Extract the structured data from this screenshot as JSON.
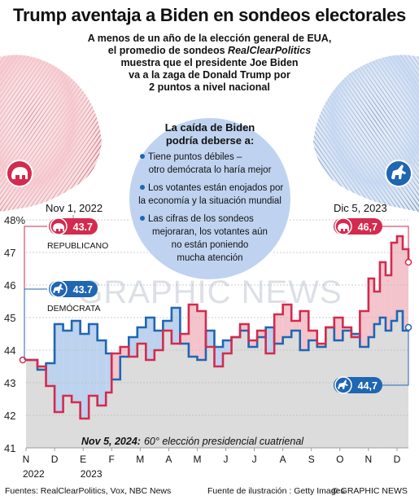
{
  "header": {
    "title": "Trump aventaja a Biden en sondeos electorales",
    "subtitle_line1": "A menos de un año de la elección general de EUA,",
    "subtitle_line2_pre": "el promedio de sondeos ",
    "subtitle_line2_italic": "RealClearPolitics",
    "subtitle_line3": "muestra que el presidente Joe Biden",
    "subtitle_line4": "va a la zaga de Donald Trump por",
    "subtitle_line5": "2 puntos a nivel nacional"
  },
  "callout": {
    "heading_line1": "La caída de Biden",
    "heading_line2": "podría deberse a:",
    "items": [
      [
        "Tiene puntos débiles –",
        "otro demócrata lo haría mejor"
      ],
      [
        "Los votantes están enojados por",
        "la economía y la situación mundial"
      ],
      [
        "Las cifras de los sondeos",
        "mejoraran, los votantes aún",
        "no están poniendo",
        "mucha atención"
      ]
    ]
  },
  "annotations": {
    "start_date": "Nov 1, 2022",
    "end_date": "Dic 5, 2023",
    "rep_start": "43.7",
    "dem_start": "43.7",
    "rep_end": "46,7",
    "dem_end": "44,7",
    "rep_label": "REPUBLICANO",
    "dem_label": "DEMÓCRATA",
    "election_bold": "Nov 5, 2024:",
    "election_italic": "60° elección presidencial cuatrienal",
    "watermark": "GRAPHIC NEWS"
  },
  "colors": {
    "republican": "#d42a4e",
    "democrat": "#1f66b3",
    "rep_fill": "#f3c4cb",
    "dem_fill": "#bcd2ee",
    "base_fill": "#dcdcdc",
    "callout": "#bfd3f0"
  },
  "footer": {
    "sources": "Fuentes: RealClearPolitics, Vox, NBC News",
    "illustration": "Fuente de ilustración : Getty Images",
    "credit": "© GRAPHIC NEWS"
  },
  "chart_data": {
    "type": "line",
    "x_unit": "months since Nov 1, 2022",
    "xlim": [
      0,
      13.4
    ],
    "ylim": [
      41,
      48
    ],
    "yticks": [
      "41",
      "42",
      "43",
      "44",
      "45",
      "46",
      "47",
      "48%"
    ],
    "xtick_labels": [
      {
        "label": "N",
        "x": 0
      },
      {
        "label": "D",
        "x": 1
      },
      {
        "label": "E",
        "x": 2
      },
      {
        "label": "F",
        "x": 3
      },
      {
        "label": "M",
        "x": 4
      },
      {
        "label": "A",
        "x": 5
      },
      {
        "label": "M",
        "x": 6
      },
      {
        "label": "J",
        "x": 7
      },
      {
        "label": "J",
        "x": 8
      },
      {
        "label": "A",
        "x": 9
      },
      {
        "label": "S",
        "x": 10
      },
      {
        "label": "O",
        "x": 11
      },
      {
        "label": "N",
        "x": 12
      },
      {
        "label": "D",
        "x": 13
      }
    ],
    "year_labels": [
      {
        "label": "2022",
        "x": 0
      },
      {
        "label": "2023",
        "x": 2
      }
    ],
    "series": [
      {
        "name": "REPUBLICANO",
        "x": [
          0,
          0.4,
          0.7,
          1.0,
          1.3,
          1.6,
          1.9,
          2.2,
          2.5,
          2.8,
          3.0,
          3.3,
          3.6,
          3.9,
          4.2,
          4.5,
          4.8,
          5.1,
          5.4,
          5.7,
          6.0,
          6.3,
          6.6,
          6.9,
          7.2,
          7.5,
          7.8,
          8.1,
          8.4,
          8.7,
          9.0,
          9.3,
          9.6,
          9.9,
          10.2,
          10.5,
          10.8,
          11.1,
          11.4,
          11.7,
          12.0,
          12.2,
          12.4,
          12.6,
          12.8,
          13.0,
          13.2,
          13.4
        ],
        "values": [
          43.7,
          43.5,
          42.9,
          42.1,
          42.6,
          42.4,
          41.9,
          42.6,
          42.3,
          42.7,
          43.9,
          44.1,
          43.8,
          44.2,
          43.7,
          44.0,
          44.6,
          44.2,
          44.5,
          45.4,
          45.2,
          44.1,
          43.5,
          43.9,
          44.4,
          44.8,
          44.3,
          44.6,
          43.9,
          45.1,
          45.4,
          44.9,
          45.2,
          44.6,
          44.2,
          44.7,
          45.0,
          44.7,
          44.4,
          45.2,
          46.2,
          45.8,
          46.7,
          46.3,
          47.3,
          47.5,
          47.1,
          46.7
        ]
      },
      {
        "name": "DEMÓCRATA",
        "x": [
          0,
          0.4,
          0.7,
          1.0,
          1.3,
          1.6,
          1.9,
          2.2,
          2.5,
          2.8,
          3.0,
          3.3,
          3.6,
          3.9,
          4.2,
          4.5,
          4.8,
          5.1,
          5.4,
          5.7,
          6.0,
          6.3,
          6.6,
          6.9,
          7.2,
          7.5,
          7.8,
          8.1,
          8.4,
          8.7,
          9.0,
          9.3,
          9.6,
          9.9,
          10.2,
          10.5,
          10.8,
          11.1,
          11.4,
          11.7,
          12.0,
          12.2,
          12.4,
          12.6,
          12.8,
          13.0,
          13.2,
          13.4
        ],
        "values": [
          43.7,
          43.4,
          43.6,
          44.8,
          44.6,
          44.9,
          44.5,
          44.8,
          44.3,
          43.9,
          43.1,
          43.8,
          44.4,
          44.7,
          45.0,
          44.6,
          44.9,
          45.3,
          44.2,
          43.8,
          43.7,
          44.6,
          44.1,
          44.3,
          44.4,
          44.6,
          44.1,
          44.4,
          44.7,
          44.2,
          44.4,
          44.6,
          44.0,
          44.3,
          44.1,
          44.7,
          44.3,
          44.6,
          44.5,
          44.1,
          44.4,
          44.8,
          45.0,
          44.6,
          44.9,
          45.2,
          44.6,
          44.7
        ]
      }
    ]
  }
}
